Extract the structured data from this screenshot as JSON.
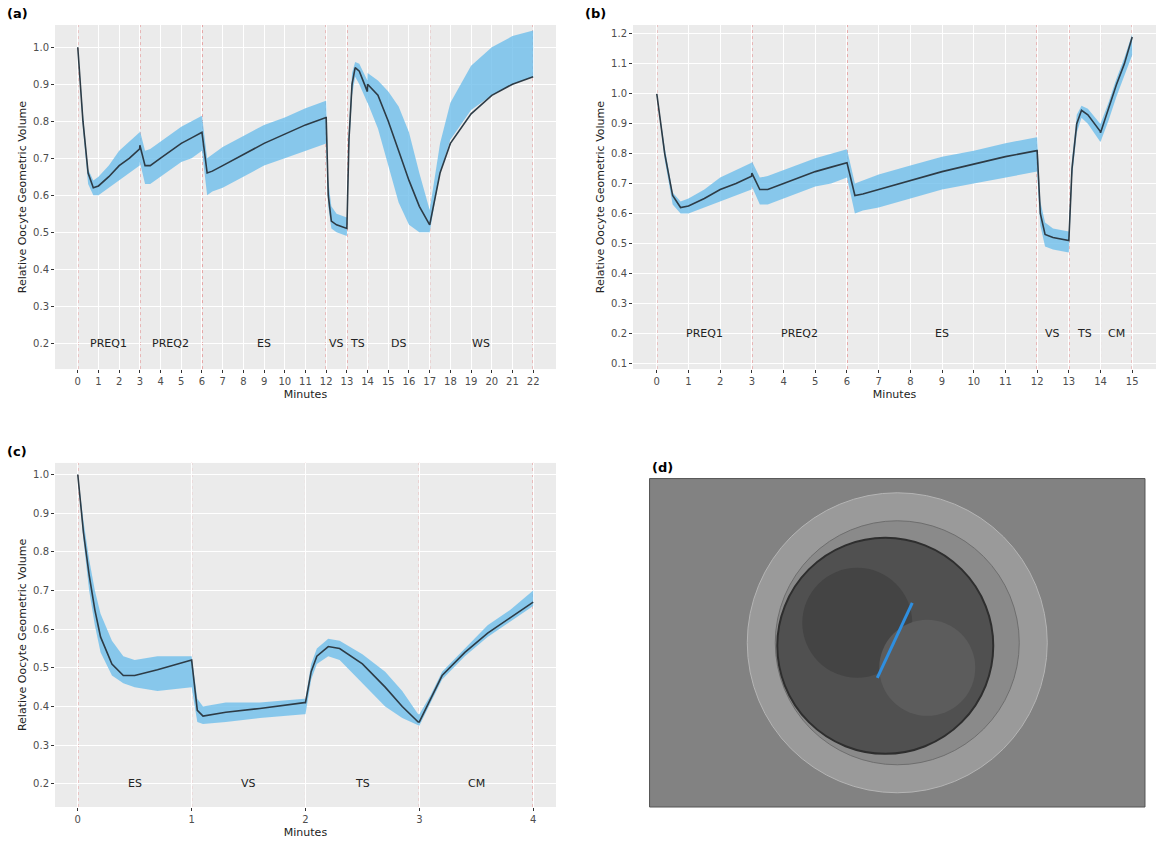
{
  "chart_data": [
    {
      "type": "line",
      "title": "(a)",
      "x_label": "Minutes",
      "y_label": "Relative Oocyte Geometric Volume",
      "grid": true,
      "x": [
        0,
        0.25,
        0.5,
        0.75,
        1,
        1.5,
        2,
        2.5,
        2.99,
        3,
        3.25,
        3.5,
        4,
        4.5,
        5,
        5.5,
        5.99,
        6,
        6.25,
        6.5,
        7,
        8,
        9,
        10,
        11,
        11.99,
        12,
        12.1,
        12.25,
        12.5,
        12.99,
        13,
        13.1,
        13.25,
        13.4,
        13.6,
        13.99,
        14,
        14.5,
        15,
        15.5,
        16,
        16.5,
        16.99,
        17,
        17.5,
        18,
        19,
        20,
        21,
        22
      ],
      "series": [
        {
          "color": "#2d3b45",
          "values": [
            1.0,
            0.8,
            0.66,
            0.62,
            0.625,
            0.65,
            0.68,
            0.7,
            0.725,
            0.735,
            0.68,
            0.68,
            0.7,
            0.72,
            0.74,
            0.755,
            0.77,
            0.77,
            0.66,
            0.665,
            0.68,
            0.71,
            0.74,
            0.765,
            0.79,
            0.81,
            0.81,
            0.6,
            0.53,
            0.52,
            0.51,
            0.51,
            0.75,
            0.9,
            0.945,
            0.935,
            0.88,
            0.9,
            0.87,
            0.8,
            0.72,
            0.64,
            0.57,
            0.52,
            0.52,
            0.66,
            0.74,
            0.82,
            0.87,
            0.9,
            0.92
          ],
          "lower": [
            1.0,
            0.78,
            0.63,
            0.6,
            0.6,
            0.62,
            0.64,
            0.66,
            0.68,
            0.69,
            0.63,
            0.63,
            0.65,
            0.67,
            0.69,
            0.7,
            0.72,
            0.72,
            0.6,
            0.61,
            0.62,
            0.65,
            0.68,
            0.7,
            0.72,
            0.74,
            0.74,
            0.57,
            0.51,
            0.5,
            0.49,
            0.49,
            0.72,
            0.87,
            0.92,
            0.9,
            0.85,
            0.85,
            0.78,
            0.68,
            0.58,
            0.52,
            0.5,
            0.5,
            0.5,
            0.66,
            0.75,
            0.83,
            0.87,
            0.9,
            0.92
          ],
          "upper": [
            1.0,
            0.82,
            0.67,
            0.64,
            0.65,
            0.68,
            0.72,
            0.745,
            0.77,
            0.775,
            0.72,
            0.725,
            0.745,
            0.765,
            0.785,
            0.8,
            0.815,
            0.815,
            0.7,
            0.71,
            0.73,
            0.76,
            0.79,
            0.81,
            0.835,
            0.855,
            0.855,
            0.64,
            0.57,
            0.55,
            0.54,
            0.54,
            0.78,
            0.93,
            0.96,
            0.955,
            0.91,
            0.93,
            0.91,
            0.88,
            0.84,
            0.77,
            0.66,
            0.56,
            0.56,
            0.74,
            0.85,
            0.95,
            1.0,
            1.03,
            1.045
          ]
        }
      ],
      "xlim": [
        -1.1,
        23.1
      ],
      "xticks": [
        0,
        1,
        2,
        3,
        4,
        5,
        6,
        7,
        8,
        9,
        10,
        11,
        12,
        13,
        14,
        15,
        16,
        17,
        18,
        19,
        20,
        21,
        22
      ],
      "ylim": [
        0.13,
        1.06
      ],
      "yticks": [
        0.2,
        0.3,
        0.4,
        0.5,
        0.6,
        0.7,
        0.8,
        0.9,
        {
          "value": 1,
          "label": "1.0"
        }
      ],
      "vlines": [
        0,
        3,
        6,
        12,
        13,
        14,
        17,
        22
      ],
      "annotations": [
        {
          "x": 1.5,
          "y": 0.2,
          "text": "PREQ1"
        },
        {
          "x": 4.5,
          "y": 0.2,
          "text": "PREQ2"
        },
        {
          "x": 9,
          "y": 0.2,
          "text": "ES"
        },
        {
          "x": 12.5,
          "y": 0.2,
          "text": "VS"
        },
        {
          "x": 13.5,
          "y": 0.2,
          "text": "TS"
        },
        {
          "x": 15.5,
          "y": 0.2,
          "text": "DS"
        },
        {
          "x": 19.5,
          "y": 0.2,
          "text": "WS"
        }
      ]
    },
    {
      "type": "line",
      "title": "(b)",
      "x_label": "Minutes",
      "y_label": "Relative Oocyte Geometric Volume",
      "grid": true,
      "x": [
        0,
        0.25,
        0.5,
        0.75,
        1,
        1.5,
        2,
        2.5,
        2.99,
        3,
        3.25,
        3.5,
        4,
        4.5,
        5,
        5.5,
        5.99,
        6,
        6.25,
        6.5,
        7,
        8,
        9,
        10,
        11,
        11.99,
        12,
        12.1,
        12.25,
        12.5,
        12.99,
        13,
        13.1,
        13.25,
        13.4,
        13.6,
        13.99,
        14,
        14.25,
        14.5,
        14.75,
        15
      ],
      "series": [
        {
          "color": "#2d3b45",
          "values": [
            1.0,
            0.8,
            0.66,
            0.62,
            0.625,
            0.65,
            0.68,
            0.7,
            0.725,
            0.735,
            0.68,
            0.68,
            0.7,
            0.72,
            0.74,
            0.755,
            0.77,
            0.77,
            0.66,
            0.665,
            0.68,
            0.71,
            0.74,
            0.765,
            0.79,
            0.81,
            0.81,
            0.6,
            0.53,
            0.52,
            0.51,
            0.51,
            0.75,
            0.9,
            0.945,
            0.93,
            0.875,
            0.87,
            0.95,
            1.03,
            1.1,
            1.19
          ],
          "lower": [
            1.0,
            0.78,
            0.63,
            0.6,
            0.6,
            0.62,
            0.64,
            0.66,
            0.68,
            0.69,
            0.63,
            0.63,
            0.65,
            0.67,
            0.69,
            0.7,
            0.72,
            0.72,
            0.6,
            0.61,
            0.62,
            0.65,
            0.68,
            0.7,
            0.72,
            0.74,
            0.74,
            0.56,
            0.49,
            0.48,
            0.47,
            0.47,
            0.72,
            0.87,
            0.92,
            0.9,
            0.84,
            0.84,
            0.91,
            0.99,
            1.06,
            1.13
          ],
          "upper": [
            1.0,
            0.82,
            0.67,
            0.64,
            0.65,
            0.68,
            0.72,
            0.745,
            0.77,
            0.775,
            0.72,
            0.725,
            0.745,
            0.765,
            0.785,
            0.8,
            0.815,
            0.815,
            0.7,
            0.71,
            0.73,
            0.76,
            0.79,
            0.81,
            0.835,
            0.855,
            0.855,
            0.64,
            0.57,
            0.55,
            0.54,
            0.54,
            0.78,
            0.93,
            0.96,
            0.95,
            0.9,
            0.9,
            0.97,
            1.05,
            1.12,
            1.2
          ]
        }
      ],
      "xlim": [
        -0.75,
        15.75
      ],
      "xticks": [
        0,
        1,
        2,
        3,
        4,
        5,
        6,
        7,
        8,
        9,
        10,
        11,
        12,
        13,
        14,
        15
      ],
      "ylim": [
        0.08,
        1.23
      ],
      "yticks": [
        0.1,
        0.2,
        0.3,
        0.4,
        0.5,
        0.6,
        0.7,
        0.8,
        0.9,
        {
          "value": 1,
          "label": "1.0"
        },
        1.1,
        1.2
      ],
      "vlines": [
        0,
        3,
        6,
        12,
        13,
        14,
        15
      ],
      "annotations": [
        {
          "x": 1.5,
          "y": 0.2,
          "text": "PREQ1"
        },
        {
          "x": 4.5,
          "y": 0.2,
          "text": "PREQ2"
        },
        {
          "x": 9,
          "y": 0.2,
          "text": "ES"
        },
        {
          "x": 12.5,
          "y": 0.2,
          "text": "VS"
        },
        {
          "x": 13.5,
          "y": 0.2,
          "text": "TS"
        },
        {
          "x": 14.5,
          "y": 0.2,
          "text": "CM"
        }
      ]
    },
    {
      "type": "line",
      "title": "(c)",
      "x_label": "Minutes",
      "y_label": "Relative Oocyte Geometric Volume",
      "grid": true,
      "x": [
        0,
        0.05,
        0.1,
        0.15,
        0.2,
        0.3,
        0.4,
        0.5,
        0.7,
        0.99,
        1,
        1.05,
        1.1,
        1.3,
        1.6,
        1.99,
        2,
        2.05,
        2.1,
        2.2,
        2.3,
        2.5,
        2.7,
        2.85,
        2.99,
        3,
        3.1,
        3.2,
        3.4,
        3.6,
        3.8,
        4
      ],
      "series": [
        {
          "color": "#2d3b45",
          "values": [
            1.0,
            0.85,
            0.74,
            0.65,
            0.58,
            0.51,
            0.48,
            0.48,
            0.495,
            0.52,
            0.52,
            0.39,
            0.375,
            0.385,
            0.395,
            0.41,
            0.41,
            0.49,
            0.53,
            0.555,
            0.55,
            0.51,
            0.45,
            0.4,
            0.36,
            0.36,
            0.42,
            0.48,
            0.54,
            0.59,
            0.63,
            0.67
          ],
          "lower": [
            1.0,
            0.83,
            0.7,
            0.61,
            0.54,
            0.48,
            0.46,
            0.45,
            0.44,
            0.45,
            0.45,
            0.36,
            0.355,
            0.36,
            0.37,
            0.38,
            0.38,
            0.47,
            0.51,
            0.53,
            0.52,
            0.46,
            0.4,
            0.37,
            0.35,
            0.35,
            0.41,
            0.47,
            0.53,
            0.58,
            0.62,
            0.66
          ],
          "upper": [
            1.0,
            0.88,
            0.78,
            0.7,
            0.64,
            0.57,
            0.53,
            0.52,
            0.53,
            0.53,
            0.53,
            0.42,
            0.4,
            0.41,
            0.41,
            0.42,
            0.42,
            0.51,
            0.55,
            0.575,
            0.57,
            0.535,
            0.49,
            0.44,
            0.38,
            0.38,
            0.43,
            0.49,
            0.55,
            0.61,
            0.65,
            0.7
          ]
        }
      ],
      "xlim": [
        -0.2,
        4.2
      ],
      "xticks": [
        0,
        1,
        2,
        3,
        4
      ],
      "ylim": [
        0.14,
        1.03
      ],
      "yticks": [
        0.2,
        0.3,
        0.4,
        0.5,
        0.6,
        0.7,
        0.8,
        0.9,
        {
          "value": 1,
          "label": "1.0"
        }
      ],
      "vlines": [
        0,
        1,
        2,
        3,
        4
      ],
      "annotations": [
        {
          "x": 0.5,
          "y": 0.2,
          "text": "ES"
        },
        {
          "x": 1.5,
          "y": 0.2,
          "text": "VS"
        },
        {
          "x": 2.5,
          "y": 0.2,
          "text": "TS"
        },
        {
          "x": 3.5,
          "y": 0.2,
          "text": "CM"
        }
      ]
    },
    {
      "type": "image",
      "title": "(d)"
    }
  ]
}
